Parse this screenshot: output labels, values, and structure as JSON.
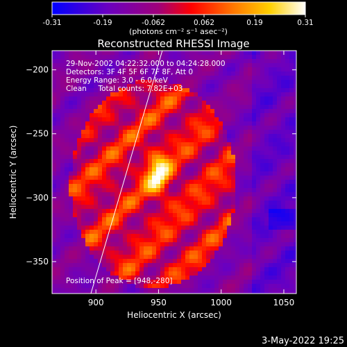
{
  "colorbar": {
    "ticks": [
      "-0.31",
      "-0.19",
      "-0.062",
      "0.062",
      "0.19",
      "0.31"
    ],
    "unit_label": "(photons cm⁻² s⁻¹ asec⁻²)",
    "range": [
      -0.31,
      0.31
    ]
  },
  "chart_data": {
    "type": "heatmap",
    "title": "Reconstructed RHESSI Image",
    "xlabel": "Heliocentric X (arcsec)",
    "ylabel": "Heliocentric Y (arcsec)",
    "xlim": [
      865,
      1060
    ],
    "ylim": [
      -375,
      -185
    ],
    "x_ticks": [
      900,
      950,
      1000,
      1050
    ],
    "y_ticks": [
      -200,
      -250,
      -300,
      -350
    ],
    "annotations": [
      "29-Nov-2002 04:22:32.000 to 04:24:28.000",
      "Detectors: 3F 4F 5F 6F 7F 8F, Att 0",
      "Energy Range: 3.0 - 6.0 keV",
      "Clean     Total counts: 7.82E+03"
    ],
    "peak": {
      "label": "Position of Peak = [948,-280]",
      "x": 948,
      "y": -280
    },
    "limb_line": [
      [
        896,
        -375
      ],
      [
        953,
        -185
      ]
    ],
    "colormap": "rainbow-hot"
  },
  "footer": {
    "date": "3-May-2022 19:25"
  }
}
